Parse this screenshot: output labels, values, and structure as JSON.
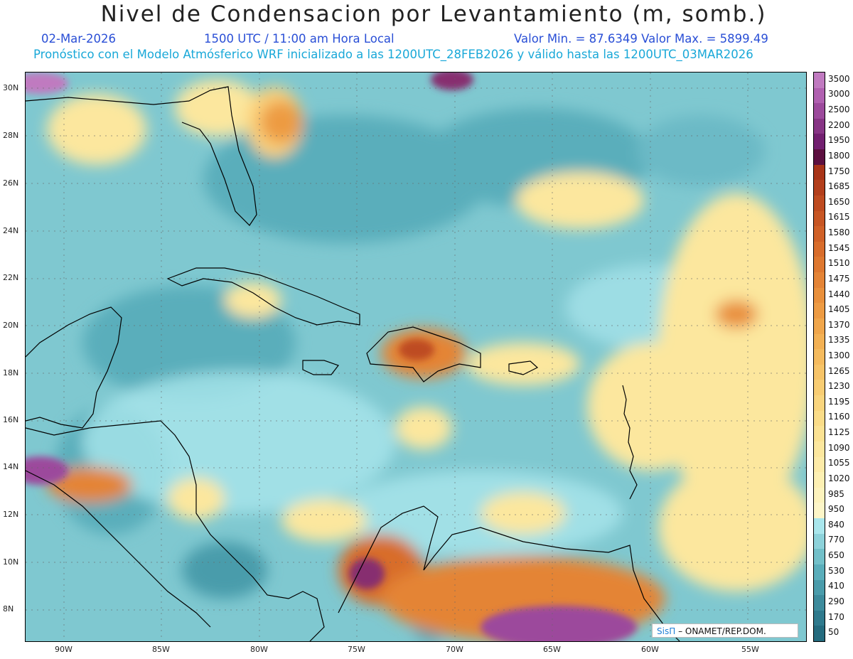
{
  "header": {
    "title": "Nivel de Condensacion por Levantamiento (m, somb.)",
    "date": "02-Mar-2026",
    "time": "1500 UTC / 11:00 am Hora Local",
    "minmax": "Valor Min. = 87.6349   Valor Max. = 5899.49",
    "forecast": "Pronóstico con el Modelo Atmósferico WRF inicializado a las 1200UTC_28FEB2026 y válido hasta las  1200UTC_03MAR2026"
  },
  "axes": {
    "lat_labels": [
      "30N",
      "28N",
      "26N",
      "24N",
      "22N",
      "20N",
      "18N",
      "16N",
      "14N",
      "12N",
      "10N",
      "8N"
    ],
    "lon_labels": [
      "90W",
      "85W",
      "80W",
      "75W",
      "70W",
      "65W",
      "60W",
      "55W"
    ]
  },
  "legend": {
    "levels": [
      "3500",
      "3000",
      "2500",
      "2200",
      "1950",
      "1800",
      "1750",
      "1685",
      "1650",
      "1615",
      "1580",
      "1545",
      "1510",
      "1475",
      "1440",
      "1405",
      "1370",
      "1335",
      "1300",
      "1265",
      "1230",
      "1195",
      "1160",
      "1125",
      "1090",
      "1055",
      "1020",
      "985",
      "950",
      "840",
      "770",
      "650",
      "530",
      "410",
      "290",
      "170",
      "50"
    ],
    "colors": [
      "#c07ac0",
      "#b060b0",
      "#9c4a9c",
      "#873585",
      "#722070",
      "#5c1040",
      "#a83418",
      "#b33f1c",
      "#be4b20",
      "#c75624",
      "#d06128",
      "#d86d2c",
      "#de7830",
      "#e48436",
      "#e9903c",
      "#ed9b43",
      "#f0a64b",
      "#f3b154",
      "#f5bb5e",
      "#f7c468",
      "#f8cd73",
      "#f9d57e",
      "#fadc88",
      "#fbe293",
      "#fce79e",
      "#fdeba8",
      "#fdf0b3",
      "#fdf3bd",
      "#fdf6c8",
      "#a9e6ec",
      "#8dd2da",
      "#72c0c9",
      "#5aaebb",
      "#4a9cab",
      "#3d8b9c",
      "#2f7a8d",
      "#246b7e"
    ]
  },
  "credit": {
    "brand": "SisΠ",
    "text": "– ONAMET/REP.DOM."
  }
}
